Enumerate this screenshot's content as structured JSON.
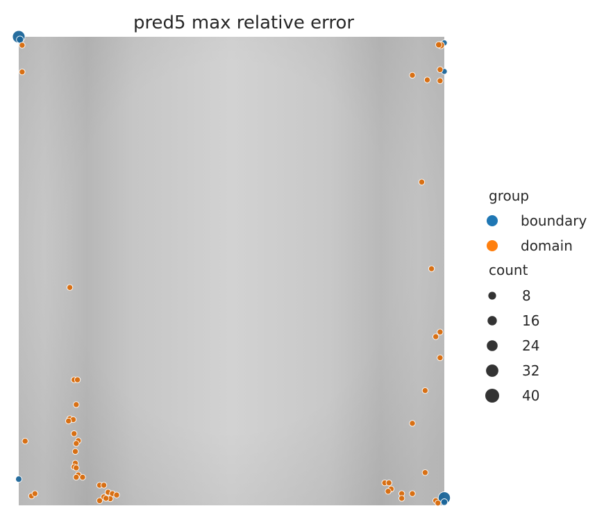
{
  "chart_data": {
    "type": "scatter",
    "title": "pred5 max relative error",
    "xlabel": "",
    "ylabel": "",
    "xlim": [
      0,
      1
    ],
    "ylim": [
      0,
      1
    ],
    "grid": false,
    "axes_visible": false,
    "background": "smooth grayscale field (lighter center, darker vertical bands near x≈0.15 and x≈0.85)",
    "legend_position": "right",
    "hue_legend": {
      "title": "group",
      "entries": [
        {
          "label": "boundary",
          "color": "#1f77b4"
        },
        {
          "label": "domain",
          "color": "#ff7f0e"
        }
      ]
    },
    "size_legend": {
      "title": "count",
      "entries": [
        {
          "label": "8",
          "value": 8
        },
        {
          "label": "16",
          "value": 16
        },
        {
          "label": "24",
          "value": 24
        },
        {
          "label": "32",
          "value": 32
        },
        {
          "label": "40",
          "value": 40
        }
      ],
      "marker_color": "#333333"
    },
    "series": [
      {
        "name": "boundary",
        "color": "#1f77b4",
        "points": [
          {
            "x": 0.0,
            "y": 1.0,
            "count": 40
          },
          {
            "x": 0.003,
            "y": 0.994,
            "count": 14
          },
          {
            "x": 1.0,
            "y": 0.987,
            "count": 8
          },
          {
            "x": 1.0,
            "y": 0.926,
            "count": 8
          },
          {
            "x": 0.0,
            "y": 0.056,
            "count": 10
          },
          {
            "x": 1.0,
            "y": 0.016,
            "count": 38
          },
          {
            "x": 1.0,
            "y": 0.007,
            "count": 12
          }
        ]
      },
      {
        "name": "domain",
        "color": "#ff7f0e",
        "points": [
          {
            "x": 0.008,
            "y": 0.982,
            "count": 8
          },
          {
            "x": 0.008,
            "y": 0.925,
            "count": 8
          },
          {
            "x": 0.992,
            "y": 0.982,
            "count": 14
          },
          {
            "x": 0.987,
            "y": 0.983,
            "count": 10
          },
          {
            "x": 0.925,
            "y": 0.918,
            "count": 8
          },
          {
            "x": 0.96,
            "y": 0.908,
            "count": 8
          },
          {
            "x": 0.99,
            "y": 0.93,
            "count": 8
          },
          {
            "x": 0.99,
            "y": 0.906,
            "count": 8
          },
          {
            "x": 0.947,
            "y": 0.69,
            "count": 8
          },
          {
            "x": 0.97,
            "y": 0.505,
            "count": 8
          },
          {
            "x": 0.12,
            "y": 0.465,
            "count": 8
          },
          {
            "x": 0.99,
            "y": 0.37,
            "count": 8
          },
          {
            "x": 0.98,
            "y": 0.36,
            "count": 8
          },
          {
            "x": 0.99,
            "y": 0.315,
            "count": 8
          },
          {
            "x": 0.955,
            "y": 0.245,
            "count": 8
          },
          {
            "x": 0.925,
            "y": 0.175,
            "count": 8
          },
          {
            "x": 0.955,
            "y": 0.07,
            "count": 8
          },
          {
            "x": 0.13,
            "y": 0.268,
            "count": 8
          },
          {
            "x": 0.138,
            "y": 0.268,
            "count": 8
          },
          {
            "x": 0.135,
            "y": 0.215,
            "count": 8
          },
          {
            "x": 0.12,
            "y": 0.185,
            "count": 8
          },
          {
            "x": 0.128,
            "y": 0.183,
            "count": 8
          },
          {
            "x": 0.117,
            "y": 0.18,
            "count": 8
          },
          {
            "x": 0.13,
            "y": 0.153,
            "count": 8
          },
          {
            "x": 0.14,
            "y": 0.138,
            "count": 8
          },
          {
            "x": 0.135,
            "y": 0.132,
            "count": 8
          },
          {
            "x": 0.133,
            "y": 0.115,
            "count": 8
          },
          {
            "x": 0.133,
            "y": 0.09,
            "count": 8
          },
          {
            "x": 0.13,
            "y": 0.082,
            "count": 8
          },
          {
            "x": 0.135,
            "y": 0.08,
            "count": 8
          },
          {
            "x": 0.14,
            "y": 0.065,
            "count": 8
          },
          {
            "x": 0.15,
            "y": 0.06,
            "count": 8
          },
          {
            "x": 0.135,
            "y": 0.06,
            "count": 8
          },
          {
            "x": 0.015,
            "y": 0.137,
            "count": 8
          },
          {
            "x": 0.03,
            "y": 0.02,
            "count": 8
          },
          {
            "x": 0.038,
            "y": 0.025,
            "count": 8
          },
          {
            "x": 0.19,
            "y": 0.043,
            "count": 8
          },
          {
            "x": 0.2,
            "y": 0.043,
            "count": 8
          },
          {
            "x": 0.21,
            "y": 0.028,
            "count": 8
          },
          {
            "x": 0.2,
            "y": 0.018,
            "count": 8
          },
          {
            "x": 0.22,
            "y": 0.025,
            "count": 8
          },
          {
            "x": 0.215,
            "y": 0.014,
            "count": 8
          },
          {
            "x": 0.23,
            "y": 0.022,
            "count": 8
          },
          {
            "x": 0.19,
            "y": 0.01,
            "count": 8
          },
          {
            "x": 0.205,
            "y": 0.015,
            "count": 8
          },
          {
            "x": 0.86,
            "y": 0.048,
            "count": 8
          },
          {
            "x": 0.87,
            "y": 0.048,
            "count": 8
          },
          {
            "x": 0.875,
            "y": 0.035,
            "count": 8
          },
          {
            "x": 0.868,
            "y": 0.03,
            "count": 8
          },
          {
            "x": 0.9,
            "y": 0.025,
            "count": 8
          },
          {
            "x": 0.9,
            "y": 0.015,
            "count": 8
          },
          {
            "x": 0.925,
            "y": 0.025,
            "count": 8
          },
          {
            "x": 0.98,
            "y": 0.01,
            "count": 8
          },
          {
            "x": 0.985,
            "y": 0.005,
            "count": 8
          }
        ]
      }
    ]
  }
}
